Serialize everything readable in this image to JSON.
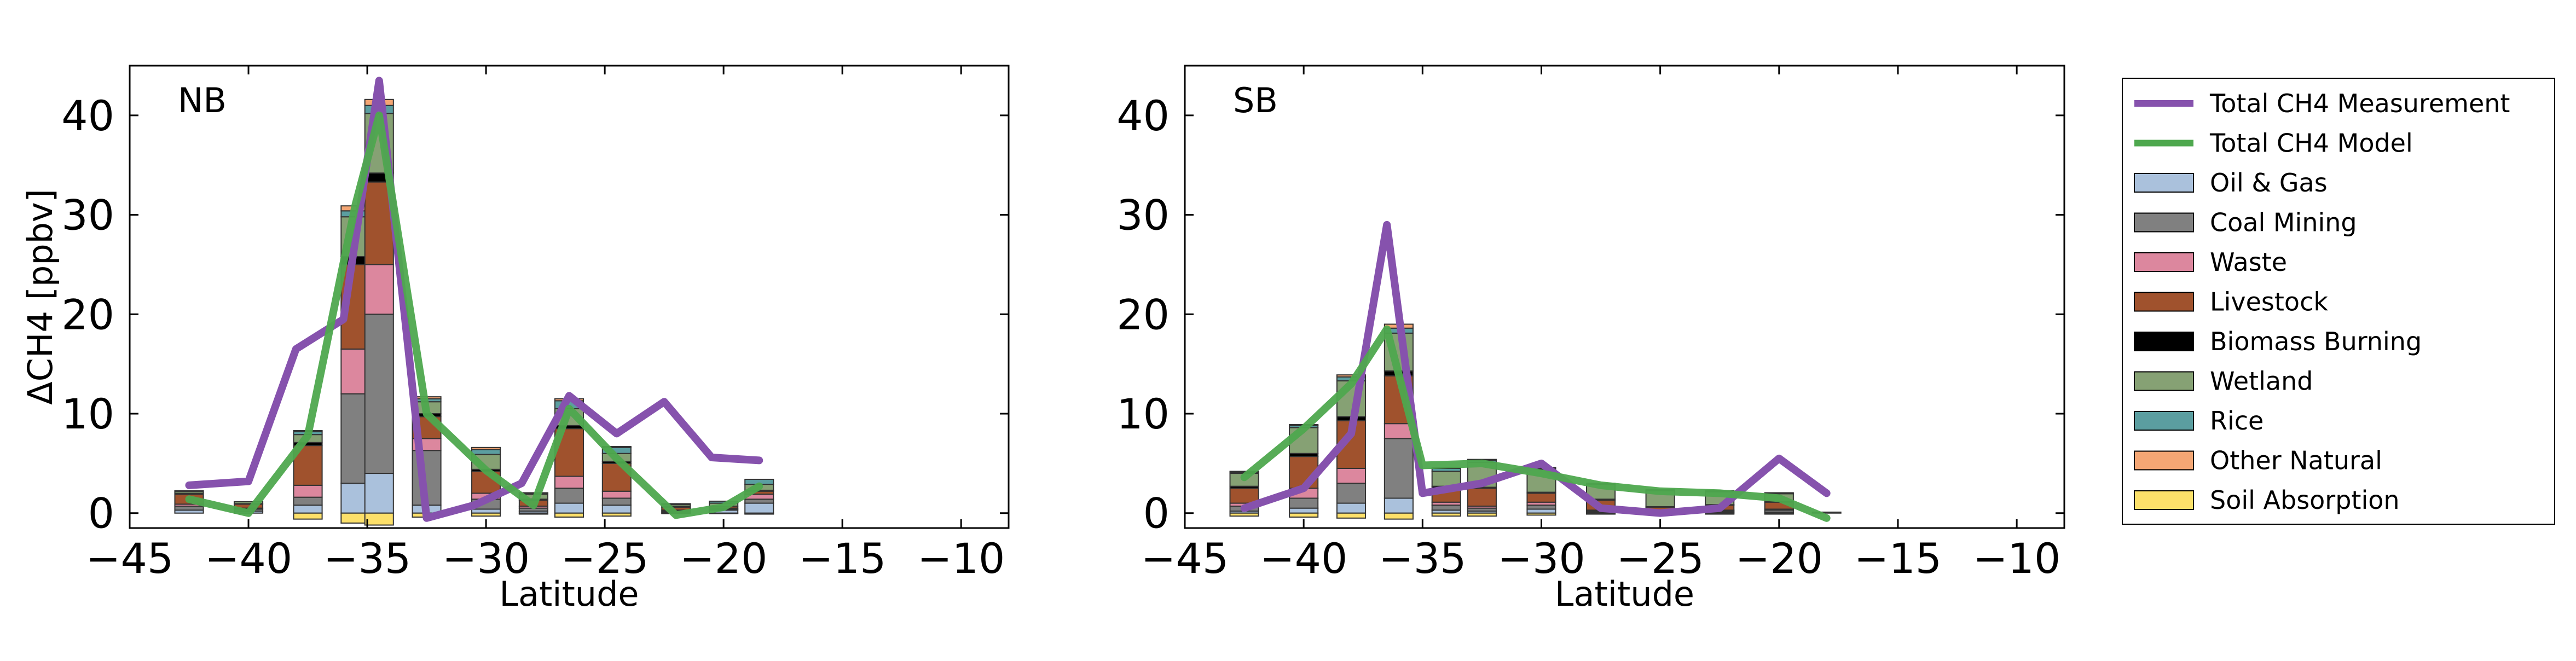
{
  "colors": {
    "Oil & Gas": "#aac1dc",
    "Coal Mining": "#808080",
    "Waste": "#dc879e",
    "Livestock": "#a0522d",
    "Biomass Burning": "#000000",
    "Wetland": "#86a174",
    "Rice": "#5b9ea0",
    "Other Natural": "#f4a674",
    "Soil Absorption": "#fce06a",
    "measurement": "#8652ad",
    "model": "#4ea84e"
  },
  "legend": {
    "items": [
      {
        "label": "Total CH4 Measurement",
        "kind": "line",
        "key": "measurement"
      },
      {
        "label": "Total CH4 Model",
        "kind": "line",
        "key": "model"
      },
      {
        "label": "Oil & Gas",
        "kind": "patch",
        "key": "Oil & Gas"
      },
      {
        "label": "Coal Mining",
        "kind": "patch",
        "key": "Coal Mining"
      },
      {
        "label": "Waste",
        "kind": "patch",
        "key": "Waste"
      },
      {
        "label": "Livestock",
        "kind": "patch",
        "key": "Livestock"
      },
      {
        "label": "Biomass Burning",
        "kind": "patch",
        "key": "Biomass Burning"
      },
      {
        "label": "Wetland",
        "kind": "patch",
        "key": "Wetland"
      },
      {
        "label": "Rice",
        "kind": "patch",
        "key": "Rice"
      },
      {
        "label": "Other Natural",
        "kind": "patch",
        "key": "Other Natural"
      },
      {
        "label": "Soil Absorption",
        "kind": "patch",
        "key": "Soil Absorption"
      }
    ]
  },
  "chart_data": [
    {
      "type": "bar",
      "panel_label": "NB",
      "xlabel": "Latitude",
      "ylabel": "ΔCH4 [ppbv]",
      "xlim": [
        -45,
        -8
      ],
      "ylim": [
        -1.5,
        45
      ],
      "xticks": [
        -45,
        -40,
        -35,
        -30,
        -25,
        -20,
        -15,
        -10
      ],
      "yticks": [
        0,
        10,
        20,
        30,
        40
      ],
      "xtick_labels": [
        "−45",
        "−40",
        "−35",
        "−30",
        "−25",
        "−20",
        "−15",
        "−10"
      ],
      "ytick_labels": [
        "0",
        "10",
        "20",
        "30",
        "40"
      ],
      "bar_width": 1.2,
      "bars": [
        {
          "x": -42.5,
          "values": {
            "Oil & Gas": 0.3,
            "Coal Mining": 0.4,
            "Waste": 0.2,
            "Livestock": 1.0,
            "Biomass Burning": 0.1,
            "Wetland": 0.2,
            "Rice": 0.0,
            "Other Natural": 0.05,
            "Soil Absorption": 0.0
          }
        },
        {
          "x": -40.0,
          "values": {
            "Oil & Gas": 0.2,
            "Coal Mining": 0.2,
            "Waste": 0.1,
            "Livestock": 0.4,
            "Biomass Burning": 0.05,
            "Wetland": 0.2,
            "Rice": 0.0,
            "Other Natural": 0.0,
            "Soil Absorption": 0.0
          }
        },
        {
          "x": -37.5,
          "values": {
            "Oil & Gas": 0.8,
            "Coal Mining": 0.8,
            "Waste": 1.2,
            "Livestock": 4.0,
            "Biomass Burning": 0.3,
            "Wetland": 0.8,
            "Rice": 0.3,
            "Other Natural": 0.1,
            "Soil Absorption": -0.6
          }
        },
        {
          "x": -35.5,
          "values": {
            "Oil & Gas": 3.0,
            "Coal Mining": 9.0,
            "Waste": 4.5,
            "Livestock": 8.5,
            "Biomass Burning": 0.8,
            "Wetland": 4.0,
            "Rice": 0.6,
            "Other Natural": 0.5,
            "Soil Absorption": -1.0
          }
        },
        {
          "x": -34.5,
          "values": {
            "Oil & Gas": 4.0,
            "Coal Mining": 16.0,
            "Waste": 5.0,
            "Livestock": 8.3,
            "Biomass Burning": 0.9,
            "Wetland": 6.0,
            "Rice": 0.8,
            "Other Natural": 0.6,
            "Soil Absorption": -1.2
          }
        },
        {
          "x": -32.5,
          "values": {
            "Oil & Gas": 0.8,
            "Coal Mining": 5.5,
            "Waste": 1.2,
            "Livestock": 2.2,
            "Biomass Burning": 0.3,
            "Wetland": 1.2,
            "Rice": 0.3,
            "Other Natural": 0.2,
            "Soil Absorption": -0.4
          }
        },
        {
          "x": -30.0,
          "values": {
            "Oil & Gas": 0.4,
            "Coal Mining": 1.0,
            "Waste": 0.6,
            "Livestock": 2.2,
            "Biomass Burning": 0.2,
            "Wetland": 1.5,
            "Rice": 0.5,
            "Other Natural": 0.2,
            "Soil Absorption": -0.3
          }
        },
        {
          "x": -28.0,
          "values": {
            "Oil & Gas": 0.2,
            "Coal Mining": 0.3,
            "Waste": 0.2,
            "Livestock": 0.6,
            "Biomass Burning": 0.1,
            "Wetland": 0.5,
            "Rice": 0.1,
            "Other Natural": 0.05,
            "Soil Absorption": -0.1
          }
        },
        {
          "x": -26.5,
          "values": {
            "Oil & Gas": 1.0,
            "Coal Mining": 1.5,
            "Waste": 1.2,
            "Livestock": 4.8,
            "Biomass Burning": 0.3,
            "Wetland": 1.7,
            "Rice": 0.8,
            "Other Natural": 0.2,
            "Soil Absorption": -0.4
          }
        },
        {
          "x": -24.5,
          "values": {
            "Oil & Gas": 0.8,
            "Coal Mining": 0.7,
            "Waste": 0.7,
            "Livestock": 2.8,
            "Biomass Burning": 0.2,
            "Wetland": 0.8,
            "Rice": 0.6,
            "Other Natural": 0.1,
            "Soil Absorption": -0.3
          }
        },
        {
          "x": -22.0,
          "values": {
            "Oil & Gas": 0.1,
            "Coal Mining": 0.1,
            "Waste": 0.1,
            "Livestock": 0.3,
            "Biomass Burning": 0.05,
            "Wetland": 0.2,
            "Rice": 0.1,
            "Other Natural": 0.0,
            "Soil Absorption": -0.05
          }
        },
        {
          "x": -20.0,
          "values": {
            "Oil & Gas": 0.3,
            "Coal Mining": 0.1,
            "Waste": 0.1,
            "Livestock": 0.2,
            "Biomass Burning": 0.0,
            "Wetland": 0.3,
            "Rice": 0.2,
            "Other Natural": 0.0,
            "Soil Absorption": -0.05
          }
        },
        {
          "x": -18.5,
          "values": {
            "Oil & Gas": 1.0,
            "Coal Mining": 0.4,
            "Waste": 0.5,
            "Livestock": 0.3,
            "Biomass Burning": 0.1,
            "Wetland": 0.6,
            "Rice": 0.5,
            "Other Natural": 0.0,
            "Soil Absorption": -0.1
          }
        }
      ],
      "series": [
        {
          "name": "Total CH4 Measurement",
          "key": "measurement",
          "x": [
            -42.5,
            -40.0,
            -38.0,
            -36.0,
            -34.5,
            -32.5,
            -30.5,
            -28.5,
            -26.5,
            -24.5,
            -22.5,
            -20.5,
            -18.5
          ],
          "y": [
            2.8,
            3.2,
            16.5,
            19.5,
            43.5,
            -0.5,
            0.8,
            3.0,
            11.8,
            8.0,
            11.2,
            5.6,
            5.3
          ]
        },
        {
          "name": "Total CH4 Model",
          "key": "model",
          "x": [
            -42.5,
            -40.0,
            -37.5,
            -35.5,
            -34.5,
            -32.5,
            -30.0,
            -28.0,
            -26.5,
            -24.5,
            -22.0,
            -20.0,
            -18.5
          ],
          "y": [
            1.4,
            0.0,
            7.8,
            31.0,
            40.0,
            10.0,
            4.3,
            0.8,
            10.5,
            5.5,
            -0.2,
            0.6,
            2.7
          ]
        }
      ]
    },
    {
      "type": "bar",
      "panel_label": "SB",
      "xlabel": "Latitude",
      "ylabel": "",
      "xlim": [
        -45,
        -8
      ],
      "ylim": [
        -1.5,
        45
      ],
      "xticks": [
        -45,
        -40,
        -35,
        -30,
        -25,
        -20,
        -15,
        -10
      ],
      "yticks": [
        0,
        10,
        20,
        30,
        40
      ],
      "xtick_labels": [
        "−45",
        "−40",
        "−35",
        "−30",
        "−25",
        "−20",
        "−15",
        "−10"
      ],
      "ytick_labels": [
        "0",
        "10",
        "20",
        "30",
        "40"
      ],
      "bar_width": 1.2,
      "bars": [
        {
          "x": -42.5,
          "values": {
            "Oil & Gas": 0.2,
            "Coal Mining": 0.5,
            "Waste": 0.3,
            "Livestock": 1.5,
            "Biomass Burning": 0.2,
            "Wetland": 1.3,
            "Rice": 0.1,
            "Other Natural": 0.1,
            "Soil Absorption": -0.3
          }
        },
        {
          "x": -40.0,
          "values": {
            "Oil & Gas": 0.5,
            "Coal Mining": 1.0,
            "Waste": 1.0,
            "Livestock": 3.2,
            "Biomass Burning": 0.3,
            "Wetland": 2.6,
            "Rice": 0.2,
            "Other Natural": 0.1,
            "Soil Absorption": -0.4
          }
        },
        {
          "x": -38.0,
          "values": {
            "Oil & Gas": 1.0,
            "Coal Mining": 2.0,
            "Waste": 1.5,
            "Livestock": 4.8,
            "Biomass Burning": 0.4,
            "Wetland": 3.6,
            "Rice": 0.4,
            "Other Natural": 0.2,
            "Soil Absorption": -0.5
          }
        },
        {
          "x": -36.0,
          "values": {
            "Oil & Gas": 1.5,
            "Coal Mining": 6.0,
            "Waste": 1.5,
            "Livestock": 4.8,
            "Biomass Burning": 0.5,
            "Wetland": 3.8,
            "Rice": 0.5,
            "Other Natural": 0.4,
            "Soil Absorption": -0.6
          }
        },
        {
          "x": -34.0,
          "values": {
            "Oil & Gas": 0.3,
            "Coal Mining": 0.5,
            "Waste": 0.3,
            "Livestock": 1.4,
            "Biomass Burning": 0.2,
            "Wetland": 1.5,
            "Rice": 0.3,
            "Other Natural": 0.1,
            "Soil Absorption": -0.3
          }
        },
        {
          "x": -32.5,
          "values": {
            "Oil & Gas": 0.2,
            "Coal Mining": 0.3,
            "Waste": 0.2,
            "Livestock": 1.8,
            "Biomass Burning": 0.1,
            "Wetland": 2.5,
            "Rice": 0.2,
            "Other Natural": 0.1,
            "Soil Absorption": -0.3
          }
        },
        {
          "x": -30.0,
          "values": {
            "Oil & Gas": 0.4,
            "Coal Mining": 0.4,
            "Waste": 0.3,
            "Livestock": 0.9,
            "Biomass Burning": 0.1,
            "Wetland": 2.3,
            "Rice": 0.1,
            "Other Natural": 0.1,
            "Soil Absorption": -0.2
          }
        },
        {
          "x": -27.5,
          "values": {
            "Oil & Gas": 0.1,
            "Coal Mining": 0.1,
            "Waste": 0.1,
            "Livestock": 1.0,
            "Biomass Burning": 0.1,
            "Wetland": 1.5,
            "Rice": 0.1,
            "Other Natural": 0.0,
            "Soil Absorption": -0.1
          }
        },
        {
          "x": -25.0,
          "values": {
            "Oil & Gas": 0.1,
            "Coal Mining": 0.1,
            "Waste": 0.1,
            "Livestock": 0.3,
            "Biomass Burning": 0.05,
            "Wetland": 1.6,
            "Rice": 0.1,
            "Other Natural": 0.0,
            "Soil Absorption": -0.1
          }
        },
        {
          "x": -22.5,
          "values": {
            "Oil & Gas": 0.1,
            "Coal Mining": 0.1,
            "Waste": 0.1,
            "Livestock": 0.5,
            "Biomass Burning": 0.05,
            "Wetland": 1.3,
            "Rice": 0.1,
            "Other Natural": 0.0,
            "Soil Absorption": -0.1
          }
        },
        {
          "x": -20.0,
          "values": {
            "Oil & Gas": 0.1,
            "Coal Mining": 0.2,
            "Waste": 0.1,
            "Livestock": 0.7,
            "Biomass Burning": 0.05,
            "Wetland": 0.8,
            "Rice": 0.1,
            "Other Natural": 0.0,
            "Soil Absorption": -0.1
          }
        },
        {
          "x": -18.0,
          "values": {
            "Oil & Gas": 0.0,
            "Coal Mining": 0.0,
            "Waste": 0.0,
            "Livestock": 0.0,
            "Biomass Burning": 0.1,
            "Wetland": 0.0,
            "Rice": 0.0,
            "Other Natural": 0.0,
            "Soil Absorption": 0.0
          }
        }
      ],
      "series": [
        {
          "name": "Total CH4 Measurement",
          "key": "measurement",
          "x": [
            -42.5,
            -40.0,
            -38.0,
            -36.5,
            -35.0,
            -32.5,
            -30.0,
            -27.5,
            -25.0,
            -22.5,
            -20.0,
            -18.0
          ],
          "y": [
            0.5,
            2.5,
            8.0,
            29.0,
            2.0,
            3.0,
            5.0,
            0.5,
            0.0,
            0.5,
            5.5,
            2.0
          ]
        },
        {
          "name": "Total CH4 Model",
          "key": "model",
          "x": [
            -42.5,
            -40.0,
            -38.0,
            -36.5,
            -35.0,
            -32.5,
            -30.0,
            -27.5,
            -25.0,
            -22.5,
            -20.0,
            -18.0
          ],
          "y": [
            3.6,
            8.5,
            13.0,
            18.5,
            4.8,
            5.0,
            4.0,
            2.8,
            2.2,
            2.0,
            1.5,
            -0.5
          ]
        }
      ]
    }
  ]
}
